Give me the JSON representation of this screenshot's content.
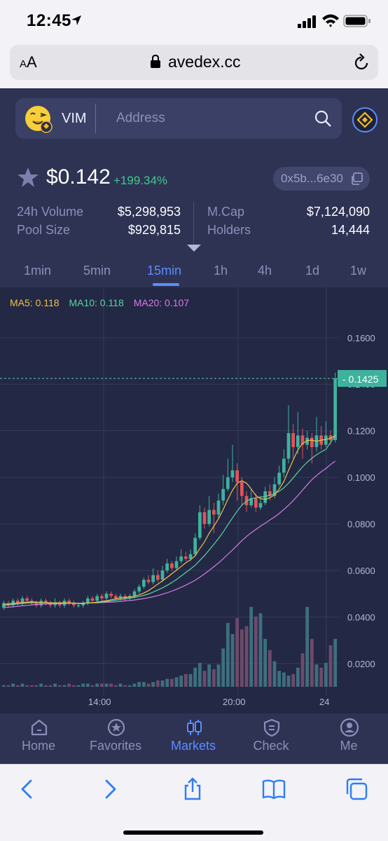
{
  "status_bar": {
    "time": "12:45"
  },
  "browser": {
    "aa_label": "AA",
    "url": "avedex.cc"
  },
  "token": {
    "name": "VIM",
    "search_placeholder": "Address",
    "price": "$0.142",
    "change": "+199.34%",
    "address_short": "0x5b...6e30"
  },
  "stats": {
    "volume_label": "24h Volume",
    "volume_value": "$5,298,953",
    "pool_label": "Pool Size",
    "pool_value": "$929,815",
    "mcap_label": "M.Cap",
    "mcap_value": "$7,124,090",
    "holders_label": "Holders",
    "holders_value": "14,444"
  },
  "intervals": [
    "1min",
    "5min",
    "15min",
    "1h",
    "4h",
    "1d",
    "1w"
  ],
  "active_interval": "15min",
  "colors": {
    "up": "#3fb29e",
    "down": "#e2545a",
    "accent": "#5c8cff",
    "ma5": "#f0c04a",
    "ma10": "#5ad3a3",
    "ma20": "#d67ae6"
  },
  "chart_data": {
    "type": "candlestick",
    "ma_legend": {
      "ma5": "MA5: 0.118",
      "ma10": "MA10: 0.118",
      "ma20": "MA20: 0.107"
    },
    "y_ticks": [
      "0.1600",
      "0.1400",
      "0.1200",
      "0.1000",
      "0.0800",
      "0.0600",
      "0.0400",
      "0.0200"
    ],
    "y_range": [
      0.01,
      0.175
    ],
    "last_price_label": "0.1425",
    "last_price": 0.1425,
    "x_ticks": [
      "14:00",
      "20:00",
      "24"
    ],
    "candles": [
      [
        0.044,
        0.046,
        0.047,
        0.043
      ],
      [
        0.046,
        0.045,
        0.047,
        0.044
      ],
      [
        0.045,
        0.047,
        0.048,
        0.044
      ],
      [
        0.047,
        0.046,
        0.048,
        0.045
      ],
      [
        0.046,
        0.048,
        0.049,
        0.045
      ],
      [
        0.048,
        0.047,
        0.049,
        0.046
      ],
      [
        0.047,
        0.046,
        0.048,
        0.045
      ],
      [
        0.046,
        0.045,
        0.047,
        0.044
      ],
      [
        0.045,
        0.047,
        0.048,
        0.044
      ],
      [
        0.047,
        0.046,
        0.048,
        0.045
      ],
      [
        0.046,
        0.045,
        0.047,
        0.044
      ],
      [
        0.045,
        0.046,
        0.048,
        0.044
      ],
      [
        0.046,
        0.045,
        0.047,
        0.044
      ],
      [
        0.045,
        0.047,
        0.048,
        0.044
      ],
      [
        0.047,
        0.046,
        0.048,
        0.045
      ],
      [
        0.046,
        0.045,
        0.047,
        0.044
      ],
      [
        0.045,
        0.045,
        0.046,
        0.044
      ],
      [
        0.045,
        0.046,
        0.047,
        0.044
      ],
      [
        0.046,
        0.048,
        0.049,
        0.045
      ],
      [
        0.048,
        0.047,
        0.049,
        0.046
      ],
      [
        0.047,
        0.049,
        0.05,
        0.046
      ],
      [
        0.049,
        0.048,
        0.05,
        0.047
      ],
      [
        0.048,
        0.05,
        0.051,
        0.047
      ],
      [
        0.05,
        0.049,
        0.051,
        0.048
      ],
      [
        0.049,
        0.048,
        0.05,
        0.047
      ],
      [
        0.048,
        0.049,
        0.05,
        0.047
      ],
      [
        0.049,
        0.048,
        0.05,
        0.047
      ],
      [
        0.048,
        0.049,
        0.05,
        0.047
      ],
      [
        0.049,
        0.051,
        0.052,
        0.048
      ],
      [
        0.051,
        0.053,
        0.054,
        0.05
      ],
      [
        0.053,
        0.056,
        0.057,
        0.052
      ],
      [
        0.056,
        0.055,
        0.058,
        0.054
      ],
      [
        0.055,
        0.058,
        0.061,
        0.054
      ],
      [
        0.058,
        0.056,
        0.06,
        0.055
      ],
      [
        0.056,
        0.06,
        0.062,
        0.055
      ],
      [
        0.06,
        0.063,
        0.065,
        0.059
      ],
      [
        0.063,
        0.061,
        0.064,
        0.06
      ],
      [
        0.061,
        0.064,
        0.066,
        0.06
      ],
      [
        0.064,
        0.066,
        0.069,
        0.063
      ],
      [
        0.066,
        0.065,
        0.068,
        0.064
      ],
      [
        0.065,
        0.067,
        0.069,
        0.064
      ],
      [
        0.067,
        0.074,
        0.076,
        0.066
      ],
      [
        0.074,
        0.085,
        0.088,
        0.073
      ],
      [
        0.085,
        0.08,
        0.087,
        0.078
      ],
      [
        0.08,
        0.086,
        0.092,
        0.079
      ],
      [
        0.086,
        0.084,
        0.089,
        0.076
      ],
      [
        0.084,
        0.09,
        0.093,
        0.082
      ],
      [
        0.09,
        0.095,
        0.101,
        0.088
      ],
      [
        0.095,
        0.1,
        0.108,
        0.094
      ],
      [
        0.1,
        0.103,
        0.114,
        0.098
      ],
      [
        0.103,
        0.098,
        0.106,
        0.09
      ],
      [
        0.098,
        0.092,
        0.1,
        0.088
      ],
      [
        0.092,
        0.088,
        0.094,
        0.085
      ],
      [
        0.088,
        0.091,
        0.095,
        0.087
      ],
      [
        0.091,
        0.087,
        0.093,
        0.085
      ],
      [
        0.087,
        0.089,
        0.092,
        0.086
      ],
      [
        0.089,
        0.094,
        0.096,
        0.088
      ],
      [
        0.094,
        0.092,
        0.097,
        0.09
      ],
      [
        0.092,
        0.097,
        0.1,
        0.091
      ],
      [
        0.097,
        0.102,
        0.105,
        0.096
      ],
      [
        0.102,
        0.108,
        0.112,
        0.1
      ],
      [
        0.108,
        0.119,
        0.131,
        0.106
      ],
      [
        0.119,
        0.113,
        0.123,
        0.108
      ],
      [
        0.113,
        0.118,
        0.128,
        0.11
      ],
      [
        0.118,
        0.114,
        0.121,
        0.108
      ],
      [
        0.114,
        0.117,
        0.12,
        0.112
      ],
      [
        0.117,
        0.113,
        0.119,
        0.106
      ],
      [
        0.113,
        0.118,
        0.126,
        0.111
      ],
      [
        0.118,
        0.114,
        0.122,
        0.112
      ],
      [
        0.114,
        0.118,
        0.124,
        0.113
      ],
      [
        0.118,
        0.116,
        0.12,
        0.114
      ],
      [
        0.116,
        0.1425,
        0.145,
        0.115
      ]
    ],
    "volumes": [
      1,
      1,
      2,
      1,
      2,
      1,
      1,
      1,
      2,
      1,
      1,
      2,
      1,
      1,
      2,
      1,
      1,
      2,
      2,
      1,
      2,
      2,
      2,
      2,
      1,
      2,
      1,
      1,
      2,
      3,
      3,
      2,
      3,
      4,
      4,
      5,
      5,
      6,
      7,
      8,
      8,
      12,
      15,
      10,
      14,
      11,
      14,
      24,
      40,
      33,
      43,
      36,
      38,
      50,
      44,
      46,
      30,
      23,
      16,
      10,
      9,
      7,
      8,
      12,
      21,
      50,
      30,
      14,
      12,
      15,
      26,
      30
    ],
    "ma5": [
      0.0455,
      0.0456,
      0.0458,
      0.046,
      0.0462,
      0.0464,
      0.0465,
      0.0464,
      0.0462,
      0.0461,
      0.046,
      0.046,
      0.046,
      0.046,
      0.046,
      0.0459,
      0.0458,
      0.0458,
      0.046,
      0.0461,
      0.0464,
      0.0467,
      0.047,
      0.0474,
      0.0478,
      0.0481,
      0.0484,
      0.0486,
      0.0489,
      0.0495,
      0.0503,
      0.0513,
      0.0527,
      0.0541,
      0.0555,
      0.057,
      0.0586,
      0.0601,
      0.0617,
      0.0633,
      0.0646,
      0.0663,
      0.0694,
      0.0723,
      0.076,
      0.079,
      0.0822,
      0.0862,
      0.0905,
      0.0945,
      0.0975,
      0.0985,
      0.0975,
      0.095,
      0.0922,
      0.0908,
      0.0905,
      0.0912,
      0.0925,
      0.095,
      0.0982,
      0.103,
      0.1075,
      0.1118,
      0.1145,
      0.1158,
      0.116,
      0.1155,
      0.116,
      0.1163,
      0.1168,
      0.118
    ],
    "ma10": [
      0.045,
      0.0452,
      0.0454,
      0.0456,
      0.0458,
      0.046,
      0.0461,
      0.0462,
      0.0462,
      0.0462,
      0.0461,
      0.0461,
      0.0461,
      0.046,
      0.046,
      0.046,
      0.0459,
      0.0459,
      0.046,
      0.0461,
      0.0462,
      0.0464,
      0.0466,
      0.0469,
      0.0472,
      0.0475,
      0.0478,
      0.0481,
      0.0484,
      0.0488,
      0.0493,
      0.0499,
      0.0507,
      0.0516,
      0.0525,
      0.0536,
      0.0548,
      0.0561,
      0.0576,
      0.0591,
      0.0606,
      0.0622,
      0.0643,
      0.0664,
      0.0688,
      0.0712,
      0.0737,
      0.0765,
      0.0796,
      0.0826,
      0.0855,
      0.088,
      0.0898,
      0.0908,
      0.0912,
      0.0915,
      0.0918,
      0.0922,
      0.093,
      0.094,
      0.0955,
      0.0975,
      0.0998,
      0.1022,
      0.1045,
      0.1065,
      0.1082,
      0.1097,
      0.111,
      0.112,
      0.115,
      0.118
    ],
    "ma20": [
      0.044,
      0.0442,
      0.0444,
      0.0446,
      0.0448,
      0.045,
      0.0452,
      0.0454,
      0.0455,
      0.0456,
      0.0457,
      0.0457,
      0.0458,
      0.0458,
      0.0459,
      0.0459,
      0.0459,
      0.046,
      0.046,
      0.0461,
      0.0461,
      0.0462,
      0.0463,
      0.0464,
      0.0465,
      0.0467,
      0.0469,
      0.0471,
      0.0473,
      0.0476,
      0.0479,
      0.0483,
      0.0487,
      0.0492,
      0.0498,
      0.0504,
      0.0511,
      0.0519,
      0.0528,
      0.0537,
      0.0547,
      0.0558,
      0.0571,
      0.0585,
      0.06,
      0.0616,
      0.0632,
      0.065,
      0.0669,
      0.0688,
      0.0708,
      0.0728,
      0.0746,
      0.0762,
      0.0776,
      0.079,
      0.0803,
      0.0817,
      0.083,
      0.0845,
      0.0862,
      0.088,
      0.09,
      0.0922,
      0.0945,
      0.0968,
      0.099,
      0.1008,
      0.1024,
      0.1038,
      0.1055,
      0.107
    ]
  },
  "nav": [
    {
      "label": "Home"
    },
    {
      "label": "Favorites"
    },
    {
      "label": "Markets"
    },
    {
      "label": "Check"
    },
    {
      "label": "Me"
    }
  ]
}
